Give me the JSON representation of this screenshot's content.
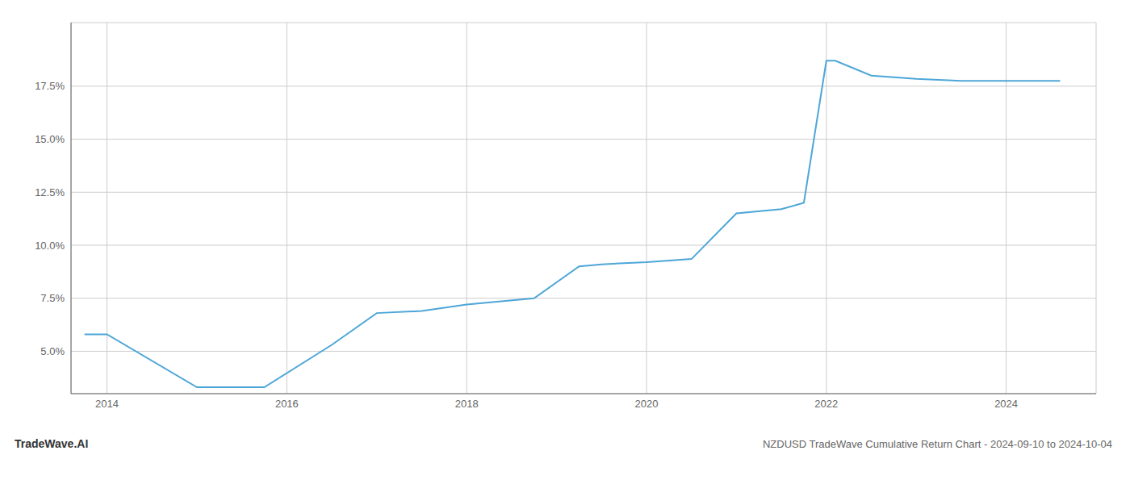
{
  "chart_data": {
    "type": "line",
    "title": "NZDUSD TradeWave Cumulative Return Chart - 2024-09-10 to 2024-10-04",
    "annotations": [
      "TradeWave.AI"
    ],
    "color": "#4da6d8",
    "grid": true,
    "x": [
      2013.75,
      2014.0,
      2015.0,
      2015.6,
      2015.75,
      2016.5,
      2017.0,
      2017.5,
      2018.0,
      2018.75,
      2019.25,
      2019.5,
      2020.0,
      2020.5,
      2021.0,
      2021.5,
      2021.75,
      2022.0,
      2022.1,
      2022.5,
      2023.0,
      2023.5,
      2024.0,
      2024.6
    ],
    "values": [
      5.8,
      5.8,
      3.3,
      3.3,
      3.3,
      5.3,
      6.8,
      6.9,
      7.2,
      7.5,
      9.0,
      9.1,
      9.2,
      9.35,
      11.5,
      11.7,
      12.0,
      18.7,
      18.7,
      18.0,
      17.85,
      17.75,
      17.75,
      17.75
    ],
    "xlim": [
      2013.6,
      2025.0
    ],
    "ylim": [
      3.0,
      20.5
    ],
    "xticks": [
      2014,
      2016,
      2018,
      2020,
      2022,
      2024
    ],
    "yticks": [
      {
        "value": 5.0,
        "label": "5.0%"
      },
      {
        "value": 7.5,
        "label": "7.5%"
      },
      {
        "value": 10.0,
        "label": "10.0%"
      },
      {
        "value": 12.5,
        "label": "12.5%"
      },
      {
        "value": 15.0,
        "label": "15.0%"
      },
      {
        "value": 17.5,
        "label": "17.5%"
      }
    ]
  }
}
